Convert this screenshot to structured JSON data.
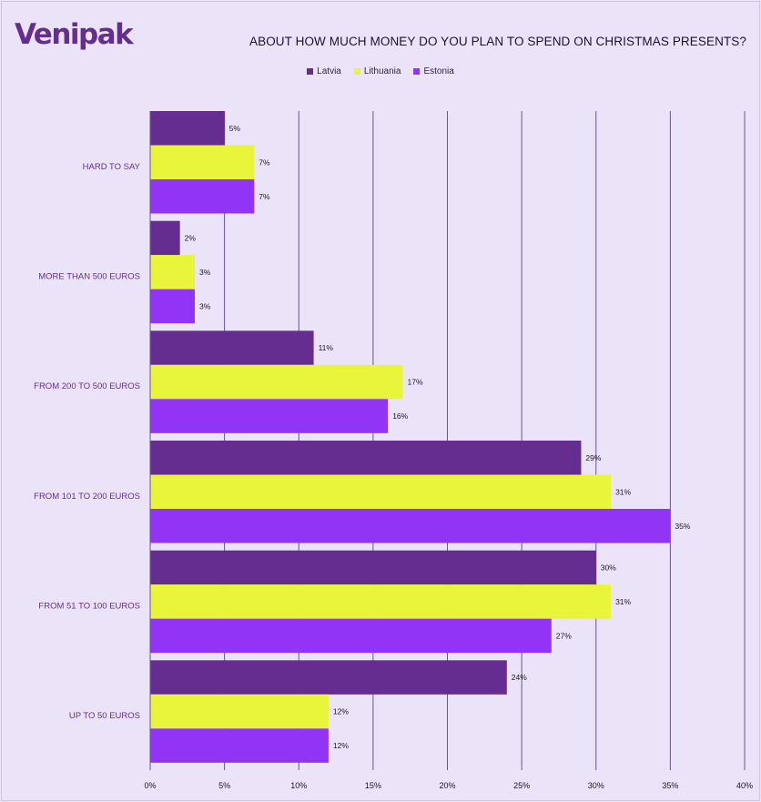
{
  "brand": {
    "logo_text": "Venipak"
  },
  "chart_data": {
    "type": "bar",
    "orientation": "horizontal",
    "title": "ABOUT HOW MUCH MONEY DO YOU PLAN TO SPEND ON CHRISTMAS PRESENTS?",
    "categories": [
      "HARD TO SAY",
      "MORE THAN 500 EUROS",
      "FROM 200 TO 500 EUROS",
      "FROM 101 TO 200 EUROS",
      "FROM 51 TO 100 EUROS",
      "UP TO 50 EUROS"
    ],
    "series": [
      {
        "name": "Latvia",
        "color": "#652d90",
        "values": [
          5,
          2,
          11,
          29,
          30,
          24
        ]
      },
      {
        "name": "Lithuania",
        "color": "#e8f53b",
        "values": [
          7,
          3,
          17,
          31,
          31,
          12
        ]
      },
      {
        "name": "Estonia",
        "color": "#9134f5",
        "values": [
          7,
          3,
          16,
          35,
          27,
          12
        ]
      }
    ],
    "value_suffix": "%",
    "xlim": [
      0,
      40
    ],
    "xticks": [
      "0%",
      "5%",
      "10%",
      "15%",
      "20%",
      "25%",
      "30%",
      "35%",
      "40%"
    ],
    "grid": "vertical",
    "legend_position": "top-center",
    "xlabel": "",
    "ylabel": ""
  }
}
